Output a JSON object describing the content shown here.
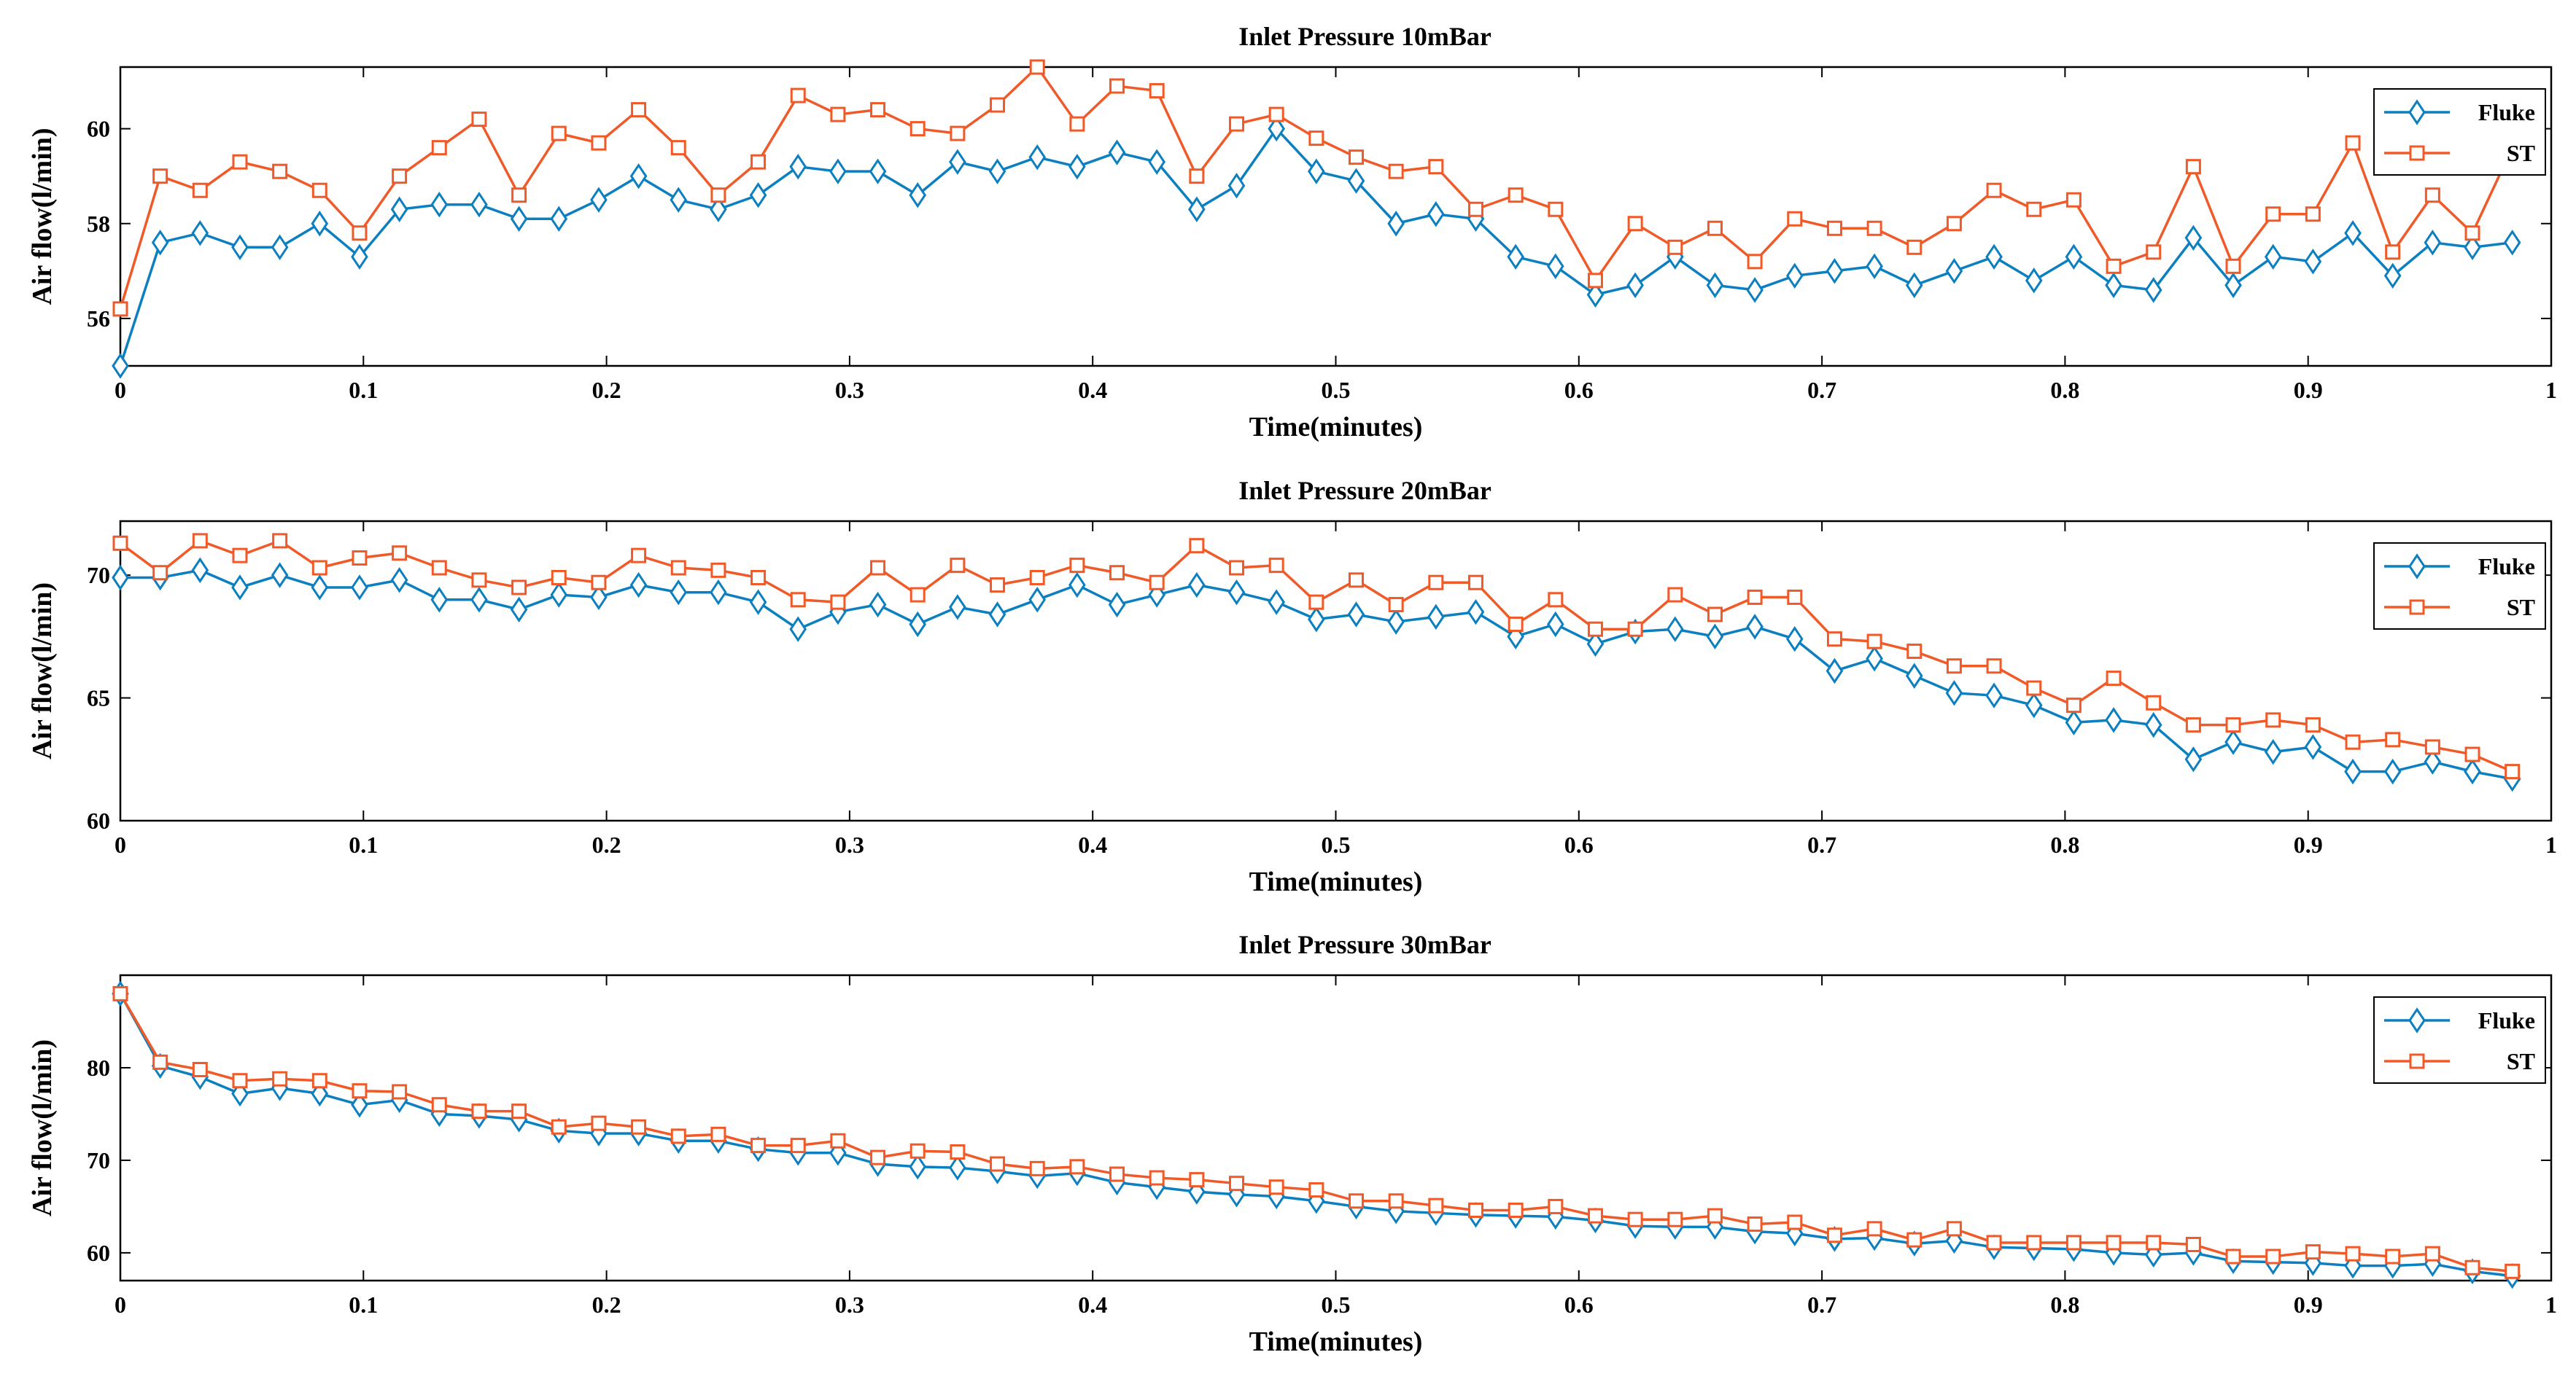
{
  "colors": {
    "fluke": "#0b7fbf",
    "st": "#f05a28",
    "axis": "#000000",
    "background": "#ffffff"
  },
  "chart_data": [
    {
      "type": "line",
      "title": "Inlet Pressure 10mBar",
      "xlabel": "Time(minutes)",
      "ylabel": "Air flow(l/min)",
      "xlim": [
        0,
        1
      ],
      "ylim": [
        55,
        61.3
      ],
      "xticks": [
        0,
        0.1,
        0.2,
        0.3,
        0.4,
        0.5,
        0.6,
        0.7,
        0.8,
        0.9,
        1
      ],
      "xtick_labels": [
        "0",
        "0.1",
        "0.2",
        "0.3",
        "0.4",
        "0.5",
        "0.6",
        "0.7",
        "0.8",
        "0.9",
        "1"
      ],
      "yticks": [
        56,
        58,
        60
      ],
      "ytick_labels": [
        "56",
        "58",
        "60"
      ],
      "legend": "top-right",
      "series": [
        {
          "name": "Fluke",
          "marker": "diamond",
          "values": [
            55.0,
            57.6,
            57.8,
            57.5,
            57.5,
            58.0,
            57.3,
            58.3,
            58.4,
            58.4,
            58.1,
            58.1,
            58.5,
            59.0,
            58.5,
            58.3,
            58.6,
            59.2,
            59.1,
            59.1,
            58.6,
            59.3,
            59.1,
            59.4,
            59.2,
            59.5,
            59.3,
            58.3,
            58.8,
            60.0,
            59.1,
            58.9,
            58.0,
            58.2,
            58.1,
            57.3,
            57.1,
            56.5,
            56.7,
            57.3,
            56.7,
            56.6,
            56.9,
            57.0,
            57.1,
            56.7,
            57.0,
            57.3,
            56.8,
            57.3,
            56.7,
            56.6,
            57.7,
            56.7,
            57.3,
            57.2,
            57.8,
            56.9,
            57.6,
            57.5,
            57.6
          ]
        },
        {
          "name": "ST",
          "marker": "square",
          "values": [
            56.2,
            59.0,
            58.7,
            59.3,
            59.1,
            58.7,
            57.8,
            59.0,
            59.6,
            60.2,
            58.6,
            59.9,
            59.7,
            60.4,
            59.6,
            58.6,
            59.3,
            60.7,
            60.3,
            60.4,
            60.0,
            59.9,
            60.5,
            61.3,
            60.1,
            60.9,
            60.8,
            59.0,
            60.1,
            60.3,
            59.8,
            59.4,
            59.1,
            59.2,
            58.3,
            58.6,
            58.3,
            56.8,
            58.0,
            57.5,
            57.9,
            57.2,
            58.1,
            57.9,
            57.9,
            57.5,
            58.0,
            58.7,
            58.3,
            58.5,
            57.1,
            57.4,
            59.2,
            57.1,
            58.2,
            58.2,
            59.7,
            57.4,
            58.6,
            57.8,
            59.6
          ]
        }
      ]
    },
    {
      "type": "line",
      "title": "Inlet Pressure 20mBar",
      "xlabel": "Time(minutes)",
      "ylabel": "Air flow(l/min)",
      "xlim": [
        0,
        1
      ],
      "ylim": [
        60,
        72.2
      ],
      "xticks": [
        0,
        0.1,
        0.2,
        0.3,
        0.4,
        0.5,
        0.6,
        0.7,
        0.8,
        0.9,
        1
      ],
      "xtick_labels": [
        "0",
        "0.1",
        "0.2",
        "0.3",
        "0.4",
        "0.5",
        "0.6",
        "0.7",
        "0.8",
        "0.9",
        "1"
      ],
      "yticks": [
        60,
        65,
        70
      ],
      "ytick_labels": [
        "60",
        "65",
        "70"
      ],
      "legend": "top-right",
      "series": [
        {
          "name": "Fluke",
          "marker": "diamond",
          "values": [
            69.9,
            69.9,
            70.2,
            69.5,
            70.0,
            69.5,
            69.5,
            69.8,
            69.0,
            69.0,
            68.6,
            69.2,
            69.1,
            69.6,
            69.3,
            69.3,
            68.9,
            67.8,
            68.5,
            68.8,
            68.0,
            68.7,
            68.4,
            69.0,
            69.6,
            68.8,
            69.2,
            69.6,
            69.3,
            68.9,
            68.2,
            68.4,
            68.1,
            68.3,
            68.5,
            67.5,
            68.0,
            67.2,
            67.7,
            67.8,
            67.5,
            67.9,
            67.4,
            66.1,
            66.6,
            65.9,
            65.2,
            65.1,
            64.7,
            64.0,
            64.1,
            63.9,
            62.5,
            63.2,
            62.8,
            63.0,
            62.0,
            62.0,
            62.4,
            62.0,
            61.7
          ]
        },
        {
          "name": "ST",
          "marker": "square",
          "values": [
            71.3,
            70.1,
            71.4,
            70.8,
            71.4,
            70.3,
            70.7,
            70.9,
            70.3,
            69.8,
            69.5,
            69.9,
            69.7,
            70.8,
            70.3,
            70.2,
            69.9,
            69.0,
            68.9,
            70.3,
            69.2,
            70.4,
            69.6,
            69.9,
            70.4,
            70.1,
            69.7,
            71.2,
            70.3,
            70.4,
            68.9,
            69.8,
            68.8,
            69.7,
            69.7,
            68.0,
            69.0,
            67.8,
            67.8,
            69.2,
            68.4,
            69.1,
            69.1,
            67.4,
            67.3,
            66.9,
            66.3,
            66.3,
            65.4,
            64.7,
            65.8,
            64.8,
            63.9,
            63.9,
            64.1,
            63.9,
            63.2,
            63.3,
            63.0,
            62.7,
            62.0
          ]
        }
      ]
    },
    {
      "type": "line",
      "title": "Inlet Pressure 30mBar",
      "xlabel": "Time(minutes)",
      "ylabel": "Air flow(l/min)",
      "xlim": [
        0,
        1
      ],
      "ylim": [
        57,
        90
      ],
      "xticks": [
        0,
        0.1,
        0.2,
        0.3,
        0.4,
        0.5,
        0.6,
        0.7,
        0.8,
        0.9,
        1
      ],
      "xtick_labels": [
        "0",
        "0.1",
        "0.2",
        "0.3",
        "0.4",
        "0.5",
        "0.6",
        "0.7",
        "0.8",
        "0.9",
        "1"
      ],
      "yticks": [
        60,
        70,
        80
      ],
      "ytick_labels": [
        "60",
        "70",
        "80"
      ],
      "legend": "top-right",
      "series": [
        {
          "name": "Fluke",
          "marker": "diamond",
          "values": [
            88.0,
            80.2,
            79.0,
            77.2,
            77.8,
            77.2,
            76.0,
            76.5,
            75.0,
            74.8,
            74.4,
            73.2,
            72.9,
            72.9,
            72.1,
            72.1,
            71.2,
            70.8,
            70.8,
            69.6,
            69.3,
            69.2,
            68.8,
            68.3,
            68.6,
            67.6,
            67.1,
            66.6,
            66.3,
            66.1,
            65.6,
            65.0,
            64.5,
            64.3,
            64.1,
            64.0,
            63.9,
            63.5,
            62.9,
            62.8,
            62.8,
            62.3,
            62.1,
            61.5,
            61.6,
            61.0,
            61.3,
            60.6,
            60.5,
            60.4,
            60.0,
            59.8,
            60.0,
            59.1,
            59.0,
            58.9,
            58.6,
            58.6,
            58.8,
            58.0,
            57.5
          ]
        },
        {
          "name": "ST",
          "marker": "square",
          "values": [
            88.0,
            80.6,
            79.8,
            78.6,
            78.8,
            78.6,
            77.5,
            77.4,
            76.0,
            75.3,
            75.3,
            73.6,
            74.0,
            73.6,
            72.6,
            72.8,
            71.6,
            71.6,
            72.1,
            70.3,
            71.0,
            70.9,
            69.6,
            69.1,
            69.3,
            68.5,
            68.1,
            67.9,
            67.5,
            67.1,
            66.8,
            65.6,
            65.6,
            65.1,
            64.6,
            64.6,
            65.0,
            64.0,
            63.6,
            63.6,
            64.0,
            63.1,
            63.3,
            61.9,
            62.6,
            61.4,
            62.6,
            61.1,
            61.1,
            61.1,
            61.1,
            61.1,
            60.9,
            59.6,
            59.6,
            60.1,
            59.9,
            59.6,
            59.9,
            58.4,
            58.0
          ]
        }
      ]
    }
  ]
}
